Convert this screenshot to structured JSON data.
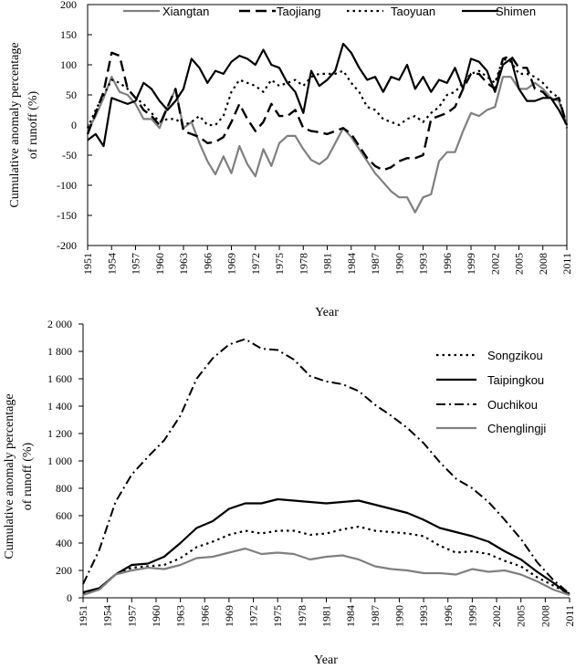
{
  "chart_data": [
    {
      "type": "line",
      "ylabel_line1": "Cumulative anomaly percentage",
      "ylabel_line2": "of runoff (%)",
      "xlabel": "Year",
      "xlim": [
        1951,
        2011
      ],
      "ylim": [
        -200,
        200
      ],
      "yticks": [
        -200,
        -150,
        -100,
        -50,
        0,
        50,
        100,
        150,
        200
      ],
      "ytick_labels": [
        "-200",
        "-150",
        "-100",
        "-50",
        "0",
        "50",
        "100",
        "150",
        "200"
      ],
      "xticks": [
        1951,
        1954,
        1957,
        1960,
        1963,
        1966,
        1969,
        1972,
        1975,
        1978,
        1981,
        1984,
        1987,
        1990,
        1993,
        1996,
        1999,
        2002,
        2005,
        2008,
        2011
      ],
      "xtick_labels": [
        "1951",
        "1954",
        "1957",
        "1960",
        "1963",
        "1966",
        "1969",
        "1972",
        "1975",
        "1978",
        "1981",
        "1984",
        "1987",
        "1990",
        "1993",
        "1996",
        "1999",
        "2002",
        "2005",
        "2008",
        "2011"
      ],
      "legend_position": "top",
      "series": [
        {
          "name": "Xiangtan",
          "color": "#808080",
          "style": "solid",
          "x": [
            1951,
            1952,
            1953,
            1954,
            1955,
            1956,
            1957,
            1958,
            1959,
            1960,
            1961,
            1962,
            1963,
            1964,
            1965,
            1966,
            1967,
            1968,
            1969,
            1970,
            1971,
            1972,
            1973,
            1974,
            1975,
            1976,
            1977,
            1978,
            1979,
            1980,
            1981,
            1982,
            1983,
            1984,
            1985,
            1986,
            1987,
            1988,
            1989,
            1990,
            1991,
            1992,
            1993,
            1994,
            1995,
            1996,
            1997,
            1998,
            1999,
            2000,
            2001,
            2002,
            2003,
            2004,
            2005,
            2006,
            2007,
            2008,
            2009,
            2010,
            2011
          ],
          "values": [
            -10,
            15,
            45,
            80,
            55,
            50,
            35,
            10,
            10,
            -5,
            30,
            60,
            -5,
            5,
            -30,
            -60,
            -82,
            -52,
            -80,
            -35,
            -65,
            -85,
            -40,
            -68,
            -30,
            -18,
            -18,
            -40,
            -58,
            -65,
            -55,
            -30,
            -5,
            -20,
            -40,
            -60,
            -80,
            -95,
            -110,
            -120,
            -120,
            -145,
            -120,
            -115,
            -60,
            -45,
            -45,
            -10,
            20,
            15,
            25,
            30,
            80,
            80,
            60,
            60,
            70,
            60,
            45,
            40,
            0
          ]
        },
        {
          "name": "Taojiang",
          "color": "#000000",
          "style": "longdash",
          "x": [
            1951,
            1952,
            1953,
            1954,
            1955,
            1956,
            1957,
            1958,
            1959,
            1960,
            1961,
            1962,
            1963,
            1964,
            1965,
            1966,
            1967,
            1968,
            1969,
            1970,
            1971,
            1972,
            1973,
            1974,
            1975,
            1976,
            1977,
            1978,
            1979,
            1980,
            1981,
            1982,
            1983,
            1984,
            1985,
            1986,
            1987,
            1988,
            1989,
            1990,
            1991,
            1992,
            1993,
            1994,
            1995,
            1996,
            1997,
            1998,
            1999,
            2000,
            2001,
            2002,
            2003,
            2004,
            2005,
            2006,
            2007,
            2008,
            2009,
            2010,
            2011
          ],
          "values": [
            -15,
            20,
            55,
            120,
            115,
            60,
            45,
            25,
            15,
            0,
            30,
            60,
            -10,
            -15,
            -20,
            -30,
            -28,
            -20,
            5,
            35,
            10,
            -10,
            5,
            35,
            15,
            15,
            25,
            -5,
            -10,
            -12,
            -15,
            -10,
            -5,
            -15,
            -35,
            -55,
            -68,
            -75,
            -70,
            -60,
            -55,
            -55,
            -50,
            10,
            15,
            20,
            30,
            60,
            85,
            85,
            70,
            60,
            110,
            115,
            95,
            95,
            60,
            55,
            40,
            45,
            0
          ]
        },
        {
          "name": "Taoyuan",
          "color": "#000000",
          "style": "dotted",
          "x": [
            1951,
            1952,
            1953,
            1954,
            1955,
            1956,
            1957,
            1958,
            1959,
            1960,
            1961,
            1962,
            1963,
            1964,
            1965,
            1966,
            1967,
            1968,
            1969,
            1970,
            1971,
            1972,
            1973,
            1974,
            1975,
            1976,
            1977,
            1978,
            1979,
            1980,
            1981,
            1982,
            1983,
            1984,
            1985,
            1986,
            1987,
            1988,
            1989,
            1990,
            1991,
            1992,
            1993,
            1994,
            1995,
            1996,
            1997,
            1998,
            1999,
            2000,
            2001,
            2002,
            2003,
            2004,
            2005,
            2006,
            2007,
            2008,
            2009,
            2010,
            2011
          ],
          "values": [
            -5,
            25,
            50,
            75,
            70,
            60,
            45,
            35,
            20,
            5,
            10,
            10,
            0,
            5,
            15,
            0,
            0,
            15,
            55,
            75,
            70,
            65,
            55,
            75,
            65,
            70,
            75,
            65,
            80,
            85,
            85,
            85,
            90,
            70,
            55,
            30,
            25,
            10,
            5,
            0,
            10,
            15,
            5,
            20,
            30,
            50,
            55,
            70,
            85,
            90,
            80,
            70,
            110,
            105,
            85,
            85,
            80,
            70,
            55,
            45,
            -5
          ]
        },
        {
          "name": "Shimen",
          "color": "#000000",
          "style": "solid",
          "x": [
            1951,
            1952,
            1953,
            1954,
            1955,
            1956,
            1957,
            1958,
            1959,
            1960,
            1961,
            1962,
            1963,
            1964,
            1965,
            1966,
            1967,
            1968,
            1969,
            1970,
            1971,
            1972,
            1973,
            1974,
            1975,
            1976,
            1977,
            1978,
            1979,
            1980,
            1981,
            1982,
            1983,
            1984,
            1985,
            1986,
            1987,
            1988,
            1989,
            1990,
            1991,
            1992,
            1993,
            1994,
            1995,
            1996,
            1997,
            1998,
            1999,
            2000,
            2001,
            2002,
            2003,
            2004,
            2005,
            2006,
            2007,
            2008,
            2009,
            2010,
            2011
          ],
          "values": [
            -25,
            -15,
            -35,
            45,
            40,
            35,
            40,
            70,
            60,
            40,
            25,
            40,
            60,
            110,
            95,
            70,
            90,
            85,
            105,
            115,
            110,
            100,
            125,
            100,
            95,
            70,
            55,
            20,
            90,
            65,
            75,
            90,
            135,
            120,
            95,
            75,
            80,
            55,
            80,
            75,
            100,
            60,
            80,
            55,
            75,
            70,
            95,
            60,
            110,
            105,
            90,
            55,
            100,
            110,
            60,
            40,
            40,
            45,
            45,
            25,
            0
          ]
        }
      ]
    },
    {
      "type": "line",
      "ylabel_line1": "Cumulative anomaly percentage",
      "ylabel_line2": "of runoff (%)",
      "xlabel": "Year",
      "xlim": [
        1951,
        2011
      ],
      "ylim": [
        0,
        2000
      ],
      "yticks": [
        0,
        200,
        400,
        600,
        800,
        1000,
        1200,
        1400,
        1600,
        1800,
        2000
      ],
      "ytick_labels": [
        "0",
        "200",
        "400",
        "600",
        "800",
        "1 000",
        "1 200",
        "1 400",
        "1 600",
        "1 800",
        "2 000"
      ],
      "xticks": [
        1951,
        1954,
        1957,
        1960,
        1963,
        1966,
        1969,
        1972,
        1975,
        1978,
        1981,
        1984,
        1987,
        1990,
        1993,
        1996,
        1999,
        2002,
        2005,
        2008,
        2011
      ],
      "xtick_labels": [
        "1951",
        "1954",
        "1957",
        "1960",
        "1963",
        "1966",
        "1969",
        "1972",
        "1975",
        "1978",
        "1981",
        "1984",
        "1987",
        "1990",
        "1993",
        "1996",
        "1999",
        "2002",
        "2005",
        "2008",
        "2011"
      ],
      "legend_position": "top-right",
      "series": [
        {
          "name": "Songzikou",
          "color": "#000000",
          "style": "dotted",
          "x": [
            1951,
            1953,
            1955,
            1957,
            1959,
            1961,
            1963,
            1965,
            1967,
            1969,
            1971,
            1973,
            1975,
            1977,
            1979,
            1981,
            1983,
            1985,
            1987,
            1989,
            1991,
            1993,
            1995,
            1997,
            1999,
            2001,
            2003,
            2005,
            2007,
            2009,
            2011
          ],
          "values": [
            30,
            60,
            170,
            220,
            230,
            240,
            290,
            370,
            410,
            460,
            490,
            470,
            490,
            490,
            460,
            470,
            500,
            520,
            490,
            480,
            470,
            450,
            380,
            330,
            340,
            320,
            270,
            230,
            150,
            90,
            30
          ]
        },
        {
          "name": "Taipingkou",
          "color": "#000000",
          "style": "solid",
          "x": [
            1951,
            1953,
            1955,
            1957,
            1959,
            1961,
            1963,
            1965,
            1967,
            1969,
            1971,
            1973,
            1975,
            1977,
            1979,
            1981,
            1983,
            1985,
            1987,
            1989,
            1991,
            1993,
            1995,
            1997,
            1999,
            2001,
            2003,
            2005,
            2007,
            2009,
            2011
          ],
          "values": [
            40,
            70,
            170,
            240,
            250,
            300,
            400,
            510,
            560,
            650,
            690,
            690,
            720,
            710,
            700,
            690,
            700,
            710,
            680,
            650,
            620,
            570,
            510,
            480,
            450,
            410,
            340,
            280,
            190,
            110,
            20
          ]
        },
        {
          "name": "Ouchikou",
          "color": "#000000",
          "style": "dashdot",
          "x": [
            1951,
            1953,
            1955,
            1957,
            1959,
            1961,
            1963,
            1965,
            1967,
            1969,
            1971,
            1973,
            1975,
            1977,
            1979,
            1981,
            1983,
            1985,
            1987,
            1989,
            1991,
            1993,
            1995,
            1997,
            1999,
            2001,
            2003,
            2005,
            2007,
            2009,
            2011
          ],
          "values": [
            100,
            350,
            700,
            900,
            1030,
            1150,
            1330,
            1600,
            1750,
            1850,
            1890,
            1820,
            1810,
            1740,
            1620,
            1580,
            1560,
            1510,
            1410,
            1330,
            1240,
            1130,
            990,
            870,
            800,
            700,
            570,
            430,
            260,
            130,
            30
          ]
        },
        {
          "name": "Chenglingji",
          "color": "#808080",
          "style": "solid",
          "x": [
            1951,
            1953,
            1955,
            1957,
            1959,
            1961,
            1963,
            1965,
            1967,
            1969,
            1971,
            1973,
            1975,
            1977,
            1979,
            1981,
            1983,
            1985,
            1987,
            1989,
            1991,
            1993,
            1995,
            1997,
            1999,
            2001,
            2003,
            2005,
            2007,
            2009,
            2011
          ],
          "values": [
            20,
            60,
            170,
            200,
            220,
            210,
            240,
            290,
            300,
            330,
            360,
            320,
            330,
            320,
            280,
            300,
            310,
            280,
            230,
            210,
            200,
            180,
            180,
            170,
            210,
            190,
            200,
            170,
            120,
            60,
            20
          ]
        }
      ]
    }
  ]
}
